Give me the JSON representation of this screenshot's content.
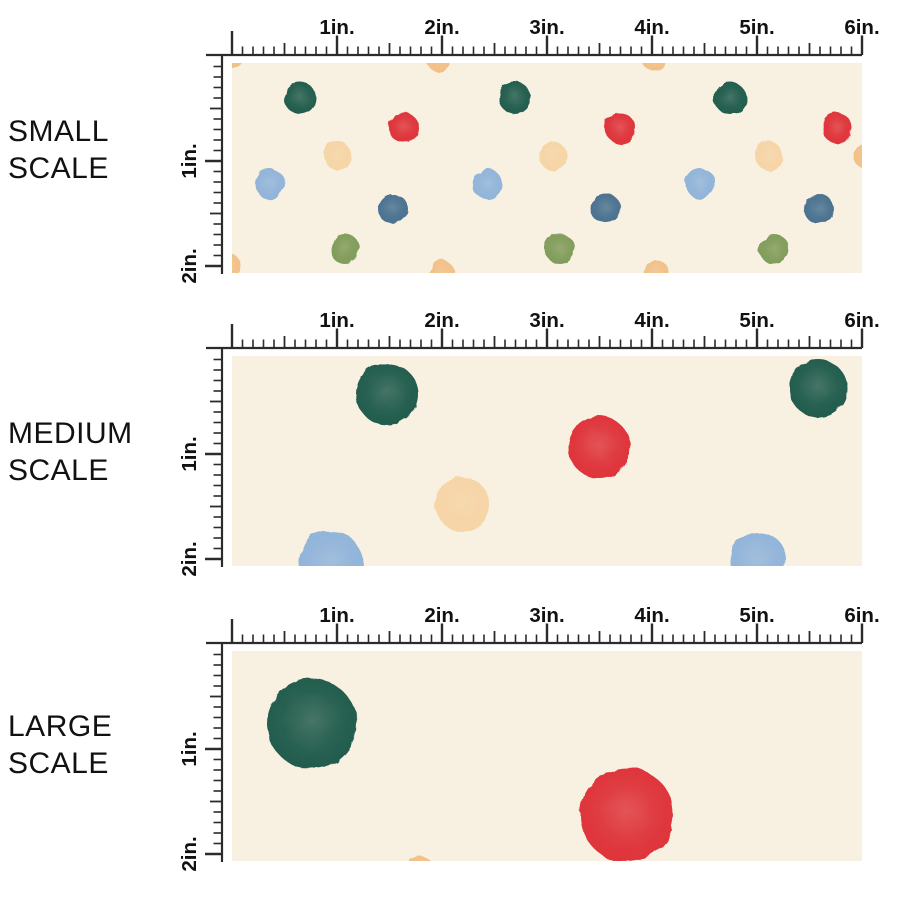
{
  "ruler": {
    "horizontal_tick_labels": [
      "1in.",
      "2in.",
      "3in.",
      "4in.",
      "5in.",
      "6in."
    ],
    "vertical_tick_labels": [
      "1in.",
      "2in."
    ],
    "inches_horizontal": 6,
    "inches_vertical": 2
  },
  "colors": {
    "swatch_background": "#F8F0E1",
    "ruler": "#2B2B2B",
    "label_text": "#111111",
    "dot_palette": {
      "teal": "#1F5A4B",
      "red": "#DE3138",
      "peach": "#F6D4A5",
      "peach_deep": "#F2C086",
      "light_blue": "#8FB3DA",
      "steel_blue": "#47708F",
      "olive": "#7F9B58"
    }
  },
  "panels": [
    {
      "id": "small-scale",
      "label_line1": "SMALL",
      "label_line2": "SCALE",
      "dots": [
        [
          68,
          35,
          16,
          "teal"
        ],
        [
          283,
          35,
          16,
          "teal"
        ],
        [
          498,
          35,
          16,
          "teal"
        ],
        [
          172,
          65,
          15,
          "red"
        ],
        [
          388,
          65,
          15,
          "red"
        ],
        [
          605,
          65,
          15,
          "red"
        ],
        [
          106,
          93,
          14,
          "peach"
        ],
        [
          321,
          93,
          14,
          "peach"
        ],
        [
          537,
          93,
          14,
          "peach"
        ],
        [
          38,
          121,
          15,
          "light_blue"
        ],
        [
          255,
          121,
          15,
          "light_blue"
        ],
        [
          469,
          121,
          15,
          "light_blue"
        ],
        [
          161,
          146,
          15,
          "steel_blue"
        ],
        [
          374,
          146,
          15,
          "steel_blue"
        ],
        [
          587,
          146,
          15,
          "steel_blue"
        ],
        [
          113,
          186,
          15,
          "olive"
        ],
        [
          328,
          186,
          15,
          "olive"
        ],
        [
          542,
          186,
          15,
          "olive"
        ],
        [
          206,
          -4,
          12,
          "peach_deep"
        ],
        [
          422,
          -4,
          12,
          "peach_deep"
        ],
        [
          2,
          -5,
          10,
          "peach_deep"
        ],
        [
          210,
          211,
          13,
          "peach_deep"
        ],
        [
          425,
          211,
          13,
          "peach_deep"
        ],
        [
          -3,
          203,
          12,
          "peach_deep"
        ],
        [
          636,
          93,
          14,
          "peach_deep"
        ]
      ]
    },
    {
      "id": "medium-scale",
      "label_line1": "MEDIUM",
      "label_line2": "SCALE",
      "dots": [
        [
          155,
          38,
          31,
          "teal"
        ],
        [
          586,
          32,
          29,
          "teal"
        ],
        [
          367,
          91,
          31,
          "red"
        ],
        [
          230,
          148,
          27,
          "peach"
        ],
        [
          99,
          207,
          32,
          "light_blue"
        ],
        [
          526,
          205,
          29,
          "light_blue"
        ]
      ]
    },
    {
      "id": "large-scale",
      "label_line1": "LARGE",
      "label_line2": "SCALE",
      "dots": [
        [
          80,
          73,
          45,
          "teal"
        ],
        [
          395,
          164,
          47,
          "red"
        ],
        [
          188,
          219,
          14,
          "peach_deep"
        ]
      ]
    }
  ]
}
